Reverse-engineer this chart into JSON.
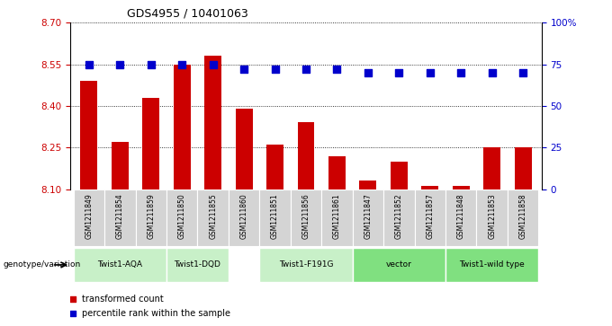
{
  "title": "GDS4955 / 10401063",
  "samples": [
    "GSM1211849",
    "GSM1211854",
    "GSM1211859",
    "GSM1211850",
    "GSM1211855",
    "GSM1211860",
    "GSM1211851",
    "GSM1211856",
    "GSM1211861",
    "GSM1211847",
    "GSM1211852",
    "GSM1211857",
    "GSM1211848",
    "GSM1211853",
    "GSM1211858"
  ],
  "red_values": [
    8.49,
    8.27,
    8.43,
    8.55,
    8.58,
    8.39,
    8.26,
    8.34,
    8.22,
    8.13,
    8.2,
    8.11,
    8.11,
    8.25,
    8.25
  ],
  "blue_values": [
    75,
    75,
    75,
    75,
    75,
    72,
    72,
    72,
    72,
    70,
    70,
    70,
    70,
    70,
    70
  ],
  "ylim_left": [
    8.1,
    8.7
  ],
  "ylim_right": [
    0,
    100
  ],
  "yticks_left": [
    8.1,
    8.25,
    8.4,
    8.55,
    8.7
  ],
  "yticks_right": [
    0,
    25,
    50,
    75,
    100
  ],
  "ytick_labels_right": [
    "0",
    "25",
    "50",
    "75",
    "100%"
  ],
  "groups_cols": [
    {
      "label": "Twist1-AQA",
      "start": 0,
      "end": 2,
      "color": "#c8f0c8"
    },
    {
      "label": "Twist1-DQD",
      "start": 3,
      "end": 4,
      "color": "#c8f0c8"
    },
    {
      "label": "Twist1-F191G",
      "start": 6,
      "end": 8,
      "color": "#c8f0c8"
    },
    {
      "label": "vector",
      "start": 9,
      "end": 11,
      "color": "#80e080"
    },
    {
      "label": "Twist1-wild type",
      "start": 12,
      "end": 14,
      "color": "#80e080"
    }
  ],
  "bar_color": "#cc0000",
  "dot_color": "#0000cc",
  "tick_color_left": "#cc0000",
  "tick_color_right": "#0000cc",
  "legend_red_label": "transformed count",
  "legend_blue_label": "percentile rank within the sample",
  "genotype_label": "genotype/variation",
  "bar_width": 0.55,
  "dot_size": 28,
  "sample_bg": "#d4d4d4"
}
